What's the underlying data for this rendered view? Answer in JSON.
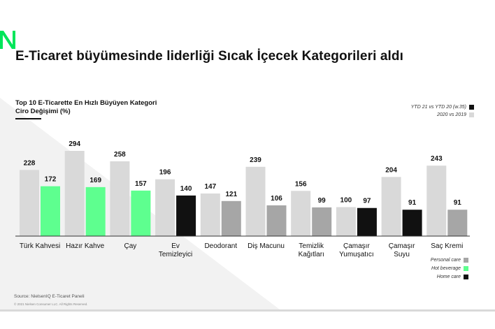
{
  "title": "E-Ticaret büyümesinde liderliği Sıcak İçecek Kategorileri aldı",
  "subtitle": {
    "line1": "Top 10 E-Ticarette En Hızlı Büyüyen Kategori",
    "line2": "Ciro Değişimi (%)"
  },
  "legend_top": [
    {
      "label": "YTD 21 vs YTD 20 (w.35)",
      "color": "#111111"
    },
    {
      "label": "2020 vs 2019",
      "color": "#d9d9d9"
    }
  ],
  "legend_bottom": [
    {
      "label": "Personal care",
      "color": "#a6a6a6"
    },
    {
      "label": "Hot beverage",
      "color": "#5eff8f"
    },
    {
      "label": "Home care",
      "color": "#111111"
    }
  ],
  "colors": {
    "prior": "#d9d9d9",
    "personal_care": "#a6a6a6",
    "hot_beverage": "#5eff8f",
    "home_care": "#111111",
    "logo": "#00e65a"
  },
  "source": "Source: NielsenIQ E-Ticaret Paneli",
  "copyright": "© 2021 Nielsen Consumer LLC. All Rights Reserved.",
  "chart_data": {
    "type": "bar",
    "categories": [
      [
        "Türk Kahvesi"
      ],
      [
        "Hazır Kahve"
      ],
      [
        "Çay"
      ],
      [
        "Ev",
        "Temizleyici"
      ],
      [
        "Deodorant"
      ],
      [
        "Diş Macunu"
      ],
      [
        "Temizlik",
        "Kağıtları"
      ],
      [
        "Çamaşır",
        "Yumuşatıcı"
      ],
      [
        "Çamaşır",
        "Suyu"
      ],
      [
        "Saç Kremi"
      ]
    ],
    "series": [
      {
        "name": "2020 vs 2019",
        "values": [
          228,
          294,
          258,
          196,
          147,
          239,
          156,
          100,
          204,
          243
        ]
      },
      {
        "name": "YTD 21 vs YTD 20 (w.35)",
        "values": [
          172,
          169,
          157,
          140,
          121,
          106,
          99,
          97,
          91,
          91
        ]
      }
    ],
    "current_group": [
      "hot_beverage",
      "hot_beverage",
      "hot_beverage",
      "home_care",
      "personal_care",
      "personal_care",
      "personal_care",
      "home_care",
      "home_care",
      "personal_care"
    ],
    "ylim": [
      0,
      300
    ]
  }
}
